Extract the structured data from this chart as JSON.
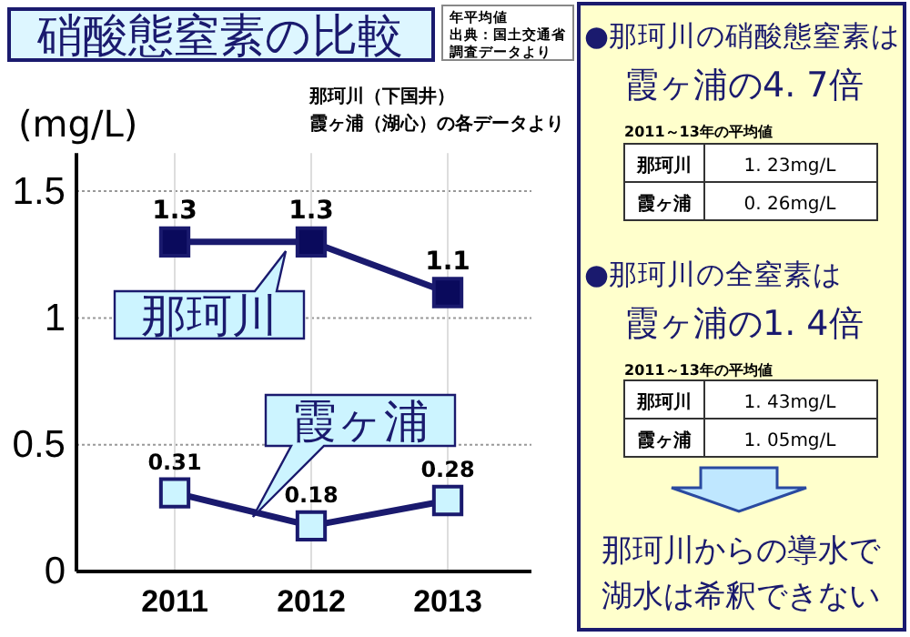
{
  "chart_data": [
    {
      "type": "line",
      "title": "硝酸態窒素の比較",
      "subtitle": "那珂川（下国井）",
      "ylabel": "(mg/L)",
      "annotations": [
        "年平均値",
        "出典：国土交通省",
        "調査データより",
        "霞ヶ浦（湖心）の各データより"
      ],
      "categories": [
        "2011",
        "2012",
        "2013"
      ],
      "ylim": [
        0,
        1.65
      ],
      "yticks": [
        0,
        0.5,
        1,
        1.5
      ],
      "grid": true,
      "marker": "square",
      "line_style": "solid",
      "data_labels": true,
      "series": [
        {
          "name": "那珂川",
          "color": "#0a0a5c",
          "values": [
            1.3,
            1.3,
            1.1
          ]
        },
        {
          "name": "霞ヶ浦",
          "color": "#ccf4ff",
          "values": [
            0.31,
            0.18,
            0.28
          ]
        }
      ]
    },
    {
      "type": "other",
      "annotations": [
        "●那珂川の硝酸態窒素は",
        "霞ヶ浦の4. 7倍",
        "2011～13年の平均値",
        "那珂川",
        "1. 23mg/L",
        "霞ヶ浦",
        "0. 26mg/L",
        "●那珂川の全窒素は",
        "霞ヶ浦の1. 4倍",
        "2011～13年の平均値",
        "那珂川",
        "1. 43mg/L",
        "霞ヶ浦",
        "1. 05mg/L",
        "那珂川からの導水で",
        "湖水は希釈できない"
      ]
    }
  ]
}
